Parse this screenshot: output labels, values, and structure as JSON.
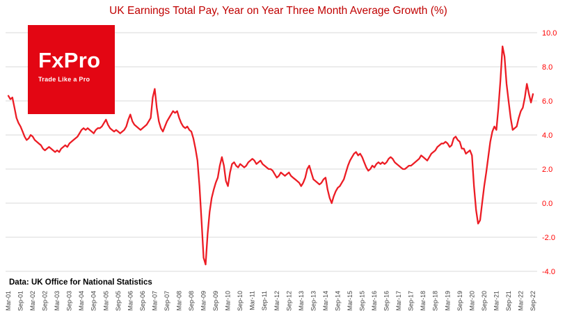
{
  "title": "UK Earnings Total Pay, Year on Year Three Month Average Growth (%)",
  "source_note": "Data: UK Office for National Statistics",
  "logo": {
    "name": "FxPro",
    "tagline": "Trade Like a Pro",
    "bg_color": "#e30613",
    "text_color": "#ffffff"
  },
  "colors": {
    "line": "#ec1c24",
    "axis_labels": "#ff0000",
    "title": "#c00000",
    "gridline": "#d9d9d9",
    "x_labels": "#3f3f3f",
    "background": "#ffffff"
  },
  "chart_data": {
    "type": "line",
    "title": "UK Earnings Total Pay, Year on Year Three Month Average Growth (%)",
    "xlabel": "",
    "ylabel": "",
    "frequency": "monthly",
    "x_start": "Mar-01",
    "x_end": "Sep-22",
    "ylim": [
      -4.0,
      10.0
    ],
    "y_ticks": [
      10.0,
      8.0,
      6.0,
      4.0,
      2.0,
      0.0,
      -2.0,
      -4.0
    ],
    "grid": "horizontal",
    "legend": "none",
    "x_tick_month_interval": 6,
    "x_tick_labels": [
      "Mar-01",
      "Sep-01",
      "Mar-02",
      "Sep-02",
      "Mar-03",
      "Sep-03",
      "Mar-04",
      "Sep-04",
      "Mar-05",
      "Sep-05",
      "Mar-06",
      "Sep-06",
      "Mar-07",
      "Sep-07",
      "Mar-08",
      "Sep-08",
      "Mar-09",
      "Sep-09",
      "Mar-10",
      "Sep-10",
      "Mar-11",
      "Sep-11",
      "Mar-12",
      "Sep-12",
      "Mar-13",
      "Sep-13",
      "Mar-14",
      "Sep-14",
      "Mar-15",
      "Sep-15",
      "Mar-16",
      "Sep-16",
      "Mar-17",
      "Sep-17",
      "Mar-18",
      "Sep-18",
      "Mar-19",
      "Sep-19",
      "Mar-20",
      "Sep-20",
      "Mar-21",
      "Sep-21",
      "Mar-22",
      "Sep-22"
    ],
    "series": [
      {
        "name": "UK Earnings Total Pay YoY 3-month average growth (%)",
        "color": "#ec1c24",
        "values": [
          6.3,
          6.1,
          6.2,
          5.6,
          5.0,
          4.7,
          4.5,
          4.2,
          3.9,
          3.7,
          3.8,
          4.0,
          3.9,
          3.7,
          3.6,
          3.5,
          3.4,
          3.2,
          3.1,
          3.2,
          3.3,
          3.2,
          3.1,
          3.0,
          3.1,
          3.0,
          3.2,
          3.3,
          3.4,
          3.3,
          3.5,
          3.6,
          3.7,
          3.8,
          3.9,
          4.1,
          4.3,
          4.4,
          4.3,
          4.4,
          4.3,
          4.2,
          4.1,
          4.3,
          4.4,
          4.4,
          4.5,
          4.7,
          4.9,
          4.6,
          4.4,
          4.3,
          4.2,
          4.3,
          4.2,
          4.1,
          4.2,
          4.3,
          4.5,
          4.9,
          5.2,
          4.8,
          4.6,
          4.5,
          4.4,
          4.3,
          4.4,
          4.5,
          4.6,
          4.8,
          5.0,
          6.2,
          6.7,
          5.6,
          4.8,
          4.4,
          4.2,
          4.5,
          4.8,
          5.0,
          5.2,
          5.4,
          5.3,
          5.4,
          5.0,
          4.7,
          4.5,
          4.4,
          4.5,
          4.3,
          4.2,
          3.8,
          3.2,
          2.5,
          1.0,
          -1.0,
          -3.2,
          -3.6,
          -1.8,
          -0.5,
          0.3,
          0.8,
          1.2,
          1.5,
          2.2,
          2.7,
          2.2,
          1.3,
          1.0,
          1.8,
          2.3,
          2.4,
          2.2,
          2.1,
          2.3,
          2.2,
          2.1,
          2.2,
          2.4,
          2.5,
          2.6,
          2.5,
          2.3,
          2.4,
          2.5,
          2.3,
          2.2,
          2.1,
          2.0,
          2.0,
          1.9,
          1.7,
          1.5,
          1.6,
          1.8,
          1.7,
          1.6,
          1.7,
          1.8,
          1.6,
          1.5,
          1.4,
          1.3,
          1.2,
          1.0,
          1.2,
          1.5,
          2.0,
          2.2,
          1.8,
          1.4,
          1.3,
          1.2,
          1.1,
          1.2,
          1.4,
          1.5,
          0.8,
          0.3,
          0.0,
          0.4,
          0.7,
          0.9,
          1.0,
          1.2,
          1.4,
          1.8,
          2.2,
          2.5,
          2.7,
          2.9,
          3.0,
          2.8,
          2.9,
          2.7,
          2.4,
          2.1,
          1.9,
          2.0,
          2.2,
          2.1,
          2.3,
          2.4,
          2.3,
          2.4,
          2.3,
          2.4,
          2.6,
          2.7,
          2.6,
          2.4,
          2.3,
          2.2,
          2.1,
          2.0,
          2.0,
          2.1,
          2.2,
          2.2,
          2.3,
          2.4,
          2.5,
          2.6,
          2.8,
          2.7,
          2.6,
          2.5,
          2.7,
          2.9,
          3.0,
          3.1,
          3.3,
          3.4,
          3.5,
          3.5,
          3.6,
          3.5,
          3.3,
          3.4,
          3.8,
          3.9,
          3.7,
          3.6,
          3.2,
          3.2,
          2.9,
          3.0,
          3.1,
          2.8,
          1.0,
          -0.4,
          -1.2,
          -1.0,
          0.0,
          1.0,
          1.8,
          2.7,
          3.6,
          4.2,
          4.5,
          4.3,
          5.6,
          7.2,
          9.2,
          8.6,
          7.0,
          6.0,
          5.0,
          4.3,
          4.4,
          4.5,
          5.0,
          5.4,
          5.6,
          6.2,
          7.0,
          6.4,
          5.9,
          6.4
        ]
      }
    ]
  }
}
